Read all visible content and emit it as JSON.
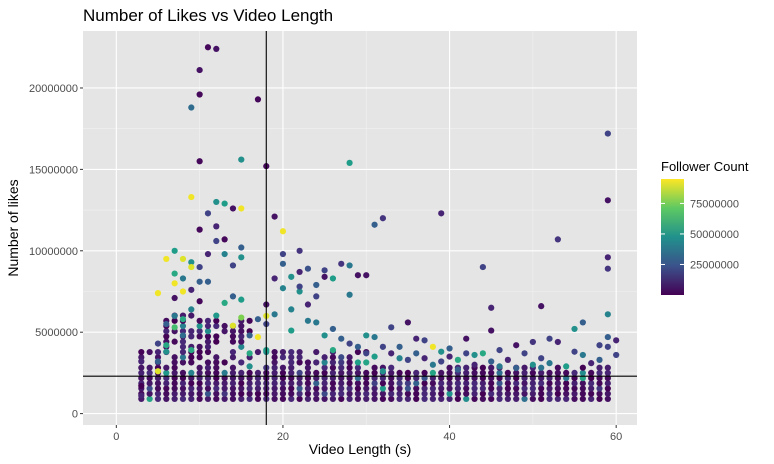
{
  "chart_data": {
    "type": "scatter",
    "title": "Number of Likes vs Video Length",
    "xlabel": "Video Length (s)",
    "ylabel": "Number of likes",
    "xlim": [
      -4,
      62.5
    ],
    "ylim": [
      -700000,
      23500000
    ],
    "x_ticks": [
      0,
      20,
      40,
      60
    ],
    "x_tick_labels": [
      "0",
      "20",
      "40",
      "60"
    ],
    "y_ticks": [
      0,
      5000000,
      10000000,
      15000000,
      20000000
    ],
    "y_tick_labels": [
      "0",
      "5000000",
      "10000000",
      "15000000",
      "20000000"
    ],
    "grid": true,
    "background": "#e5e5e5",
    "reference_lines": {
      "vertical_x": 18,
      "horizontal_y": 2300000
    },
    "legend": {
      "title": "Follower Count",
      "position": "right",
      "type": "continuous-colorbar",
      "colormap": "viridis",
      "range": [
        0,
        95000000
      ],
      "breaks": [
        25000000,
        50000000,
        75000000
      ],
      "labels": [
        "25000000",
        "50000000",
        "75000000"
      ]
    },
    "points": [
      [
        3,
        3200000,
        0.1
      ],
      [
        3,
        1700000,
        0.0
      ],
      [
        3,
        1100000,
        0.1
      ],
      [
        5,
        7400000,
        0.98
      ],
      [
        5,
        4300000,
        0.2
      ],
      [
        5,
        3200000,
        0.3
      ],
      [
        5,
        2600000,
        0.95
      ],
      [
        6,
        9500000,
        0.98
      ],
      [
        6,
        5500000,
        0.3
      ],
      [
        6,
        4200000,
        0.6
      ],
      [
        6,
        3800000,
        0.5
      ],
      [
        7,
        10000000,
        0.55
      ],
      [
        7,
        8600000,
        0.6
      ],
      [
        7,
        8000000,
        0.98
      ],
      [
        7,
        7100000,
        0.05
      ],
      [
        7,
        6000000,
        0.4
      ],
      [
        7,
        5300000,
        0.7
      ],
      [
        8,
        9500000,
        0.95
      ],
      [
        8,
        8300000,
        0.4
      ],
      [
        8,
        7500000,
        0.98
      ],
      [
        8,
        5800000,
        0.6
      ],
      [
        8,
        4800000,
        0.35
      ],
      [
        9,
        18800000,
        0.35
      ],
      [
        9,
        13300000,
        0.98
      ],
      [
        9,
        9300000,
        0.5
      ],
      [
        9,
        9000000,
        0.95
      ],
      [
        9,
        7600000,
        0.1
      ],
      [
        9,
        6400000,
        0.45
      ],
      [
        9,
        3900000,
        0.6
      ],
      [
        10,
        21100000,
        0.05
      ],
      [
        10,
        19600000,
        0.02
      ],
      [
        10,
        15500000,
        0.02
      ],
      [
        10,
        11300000,
        0.02
      ],
      [
        10,
        9000000,
        0.2
      ],
      [
        10,
        8100000,
        0.3
      ],
      [
        10,
        6900000,
        0.02
      ],
      [
        11,
        22500000,
        0.02
      ],
      [
        11,
        12300000,
        0.2
      ],
      [
        11,
        9800000,
        0.1
      ],
      [
        11,
        8100000,
        0.3
      ],
      [
        12,
        22400000,
        0.05
      ],
      [
        12,
        13000000,
        0.5
      ],
      [
        12,
        11500000,
        0.1
      ],
      [
        12,
        10600000,
        0.2
      ],
      [
        13,
        12900000,
        0.55
      ],
      [
        13,
        10700000,
        0.02
      ],
      [
        13,
        9800000,
        0.45
      ],
      [
        13,
        6800000,
        0.6
      ],
      [
        14,
        12600000,
        0.05
      ],
      [
        14,
        9100000,
        0.2
      ],
      [
        14,
        7200000,
        0.3
      ],
      [
        14,
        5400000,
        0.95
      ],
      [
        15,
        15600000,
        0.5
      ],
      [
        15,
        12600000,
        0.98
      ],
      [
        15,
        10200000,
        0.3
      ],
      [
        15,
        9600000,
        0.5
      ],
      [
        15,
        7000000,
        0.55
      ],
      [
        15,
        5900000,
        0.8
      ],
      [
        16,
        4800000,
        0.3
      ],
      [
        16,
        3700000,
        0.6
      ],
      [
        16,
        2900000,
        0.5
      ],
      [
        17,
        19300000,
        0.02
      ],
      [
        17,
        5800000,
        0.3
      ],
      [
        17,
        4700000,
        0.98
      ],
      [
        18,
        15200000,
        0.02
      ],
      [
        18,
        6700000,
        0.05
      ],
      [
        18,
        6000000,
        0.95
      ],
      [
        18,
        5500000,
        0.2
      ],
      [
        18,
        3900000,
        0.55
      ],
      [
        19,
        12100000,
        0.05
      ],
      [
        19,
        8300000,
        0.1
      ],
      [
        19,
        6100000,
        0.4
      ],
      [
        20,
        11200000,
        0.98
      ],
      [
        20,
        9800000,
        0.2
      ],
      [
        20,
        9200000,
        0.3
      ],
      [
        20,
        7700000,
        0.45
      ],
      [
        21,
        8400000,
        0.5
      ],
      [
        21,
        6400000,
        0.45
      ],
      [
        21,
        5100000,
        0.55
      ],
      [
        22,
        10000000,
        0.15
      ],
      [
        22,
        8700000,
        0.1
      ],
      [
        22,
        7500000,
        0.5
      ],
      [
        22,
        7800000,
        0.2
      ],
      [
        23,
        8900000,
        0.25
      ],
      [
        23,
        6700000,
        0.1
      ],
      [
        23,
        5700000,
        0.4
      ],
      [
        24,
        7900000,
        0.3
      ],
      [
        24,
        7200000,
        0.2
      ],
      [
        24,
        5600000,
        0.4
      ],
      [
        25,
        8800000,
        0.2
      ],
      [
        25,
        8400000,
        0.05
      ],
      [
        25,
        4800000,
        0.5
      ],
      [
        26,
        8300000,
        0.55
      ],
      [
        26,
        5200000,
        0.3
      ],
      [
        26,
        3900000,
        0.6
      ],
      [
        27,
        9200000,
        0.15
      ],
      [
        27,
        4600000,
        0.3
      ],
      [
        28,
        15400000,
        0.55
      ],
      [
        28,
        9100000,
        0.4
      ],
      [
        28,
        7300000,
        0.4
      ],
      [
        28,
        4300000,
        0.2
      ],
      [
        29,
        8500000,
        0.05
      ],
      [
        29,
        4100000,
        0.3
      ],
      [
        30,
        8500000,
        0.05
      ],
      [
        30,
        4800000,
        0.5
      ],
      [
        30,
        3700000,
        0.2
      ],
      [
        31,
        11600000,
        0.3
      ],
      [
        31,
        4700000,
        0.4
      ],
      [
        31,
        3500000,
        0.55
      ],
      [
        32,
        12000000,
        0.15
      ],
      [
        32,
        4100000,
        0.2
      ],
      [
        32,
        2600000,
        0.5
      ],
      [
        33,
        5300000,
        0.2
      ],
      [
        33,
        3700000,
        0.1
      ],
      [
        34,
        4100000,
        0.3
      ],
      [
        34,
        3400000,
        0.45
      ],
      [
        35,
        5600000,
        0.05
      ],
      [
        35,
        3300000,
        0.2
      ],
      [
        36,
        4600000,
        0.1
      ],
      [
        36,
        3700000,
        0.3
      ],
      [
        37,
        4500000,
        0.2
      ],
      [
        37,
        3400000,
        0.1
      ],
      [
        38,
        4100000,
        0.98
      ],
      [
        38,
        3000000,
        0.4
      ],
      [
        39,
        12300000,
        0.1
      ],
      [
        39,
        3800000,
        0.5
      ],
      [
        39,
        3200000,
        0.2
      ],
      [
        40,
        4000000,
        0.3
      ],
      [
        40,
        3500000,
        0.1
      ],
      [
        41,
        3300000,
        0.6
      ],
      [
        41,
        2700000,
        0.3
      ],
      [
        42,
        4600000,
        0.05
      ],
      [
        42,
        3700000,
        0.2
      ],
      [
        43,
        3600000,
        0.5
      ],
      [
        43,
        3000000,
        0.1
      ],
      [
        44,
        9000000,
        0.2
      ],
      [
        44,
        3700000,
        0.6
      ],
      [
        45,
        6500000,
        0.1
      ],
      [
        45,
        5100000,
        0.05
      ],
      [
        45,
        3200000,
        0.3
      ],
      [
        46,
        3900000,
        0.2
      ],
      [
        46,
        2900000,
        0.4
      ],
      [
        47,
        3300000,
        0.1
      ],
      [
        48,
        4200000,
        0.05
      ],
      [
        48,
        2800000,
        0.3
      ],
      [
        49,
        3700000,
        0.2
      ],
      [
        50,
        4400000,
        0.15
      ],
      [
        50,
        3000000,
        0.5
      ],
      [
        51,
        6600000,
        0.05
      ],
      [
        51,
        3400000,
        0.2
      ],
      [
        52,
        4600000,
        0.2
      ],
      [
        52,
        3100000,
        0.4
      ],
      [
        53,
        10700000,
        0.15
      ],
      [
        53,
        4400000,
        0.1
      ],
      [
        54,
        2900000,
        0.55
      ],
      [
        55,
        5200000,
        0.5
      ],
      [
        55,
        3800000,
        0.2
      ],
      [
        56,
        5600000,
        0.3
      ],
      [
        56,
        3600000,
        0.4
      ],
      [
        57,
        3100000,
        0.1
      ],
      [
        58,
        4200000,
        0.2
      ],
      [
        58,
        3300000,
        0.3
      ],
      [
        59,
        17200000,
        0.2
      ],
      [
        59,
        13100000,
        0.05
      ],
      [
        59,
        9600000,
        0.1
      ],
      [
        59,
        8900000,
        0.15
      ],
      [
        59,
        6100000,
        0.45
      ],
      [
        59,
        4700000,
        0.3
      ],
      [
        59,
        4100000,
        0.2
      ],
      [
        60,
        4500000,
        0.1
      ],
      [
        60,
        3600000,
        0.2
      ]
    ]
  }
}
